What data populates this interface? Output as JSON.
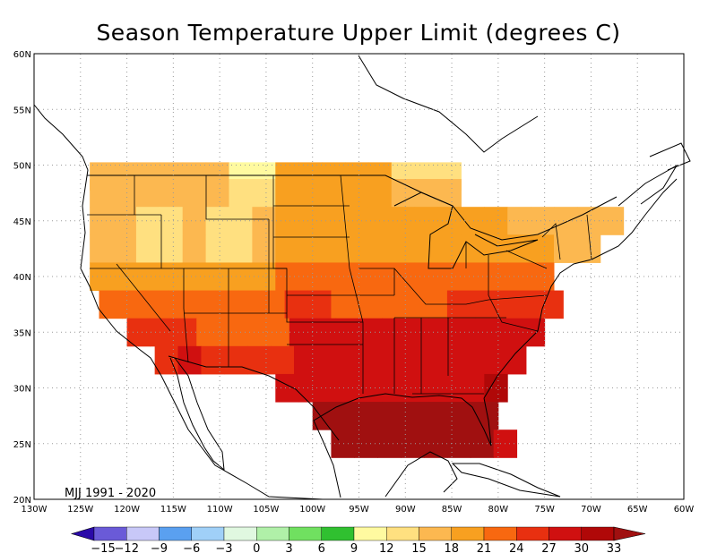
{
  "title": "Season Temperature Upper Limit (degrees C)",
  "period_label": "MJJ 1991 - 2020",
  "axes": {
    "lon_labels": [
      "130W",
      "125W",
      "120W",
      "115W",
      "110W",
      "105W",
      "100W",
      "95W",
      "90W",
      "85W",
      "80W",
      "75W",
      "70W",
      "65W",
      "60W"
    ],
    "lat_labels": [
      "20N",
      "25N",
      "30N",
      "35N",
      "40N",
      "45N",
      "50N",
      "55N",
      "60N"
    ],
    "lon_range": [
      -130,
      -60
    ],
    "lat_range": [
      20,
      60
    ],
    "grid": "dotted"
  },
  "colorbar": {
    "labels": [
      "-15",
      "-12",
      "-9",
      "-6",
      "-3",
      "0",
      "3",
      "6",
      "9",
      "12",
      "15",
      "18",
      "21",
      "24",
      "27",
      "30",
      "33"
    ],
    "below_color": "#2a0aa8",
    "above_color": "#a01010",
    "colors": [
      "#6a5ad8",
      "#c8c8f8",
      "#5aa0f0",
      "#a0d0f8",
      "#e0f8e0",
      "#b0f0a8",
      "#70e060",
      "#30c030",
      "#fffaa0",
      "#ffe080",
      "#fcb850",
      "#f8a020",
      "#f86810",
      "#e83010",
      "#d01010",
      "#b00808"
    ]
  },
  "chart_data": {
    "type": "heatmap",
    "title": "Season Temperature Upper Limit (degrees C)",
    "annotation": "MJJ 1991 - 2020",
    "x_axis": "longitude",
    "y_axis": "latitude",
    "lon_range": [
      -130,
      -60
    ],
    "lat_range": [
      20,
      60
    ],
    "cell_size_degrees": 2.5,
    "value_bins": [
      -15,
      -12,
      -9,
      -6,
      -3,
      0,
      3,
      6,
      9,
      12,
      15,
      18,
      21,
      24,
      27,
      30,
      33
    ],
    "regions_approx": [
      {
        "lat_from": 45,
        "lat_to": 49,
        "lon_from": -125,
        "lon_to": -111,
        "value": 16
      },
      {
        "lat_from": 42,
        "lat_to": 46,
        "lon_from": -121,
        "lon_to": -116,
        "value": 14
      },
      {
        "lat_from": 42,
        "lat_to": 45,
        "lon_from": -112,
        "lon_to": -107,
        "value": 14
      },
      {
        "lat_from": 44,
        "lat_to": 49,
        "lon_from": -104,
        "lon_to": -94,
        "value": 19
      },
      {
        "lat_from": 43,
        "lat_to": 47,
        "lon_from": -90,
        "lon_to": -82,
        "value": 18
      },
      {
        "lat_from": 42,
        "lat_to": 46,
        "lon_from": -75,
        "lon_to": -67,
        "value": 16
      },
      {
        "lat_from": 37,
        "lat_to": 42,
        "lon_from": -100,
        "lon_to": -88,
        "value": 22
      },
      {
        "lat_from": 33,
        "lat_to": 37,
        "lon_from": -114,
        "lon_to": -105,
        "value": 21
      },
      {
        "lat_from": 30,
        "lat_to": 35,
        "lon_from": -104,
        "lon_to": -82,
        "value": 27
      },
      {
        "lat_from": 32,
        "lat_to": 34,
        "lon_from": -116,
        "lon_to": -113,
        "value": 29
      },
      {
        "lat_from": 29,
        "lat_to": 33,
        "lon_from": -100,
        "lon_to": -93,
        "value": 29
      },
      {
        "lat_from": 25,
        "lat_to": 29,
        "lon_from": -82,
        "lon_to": -80,
        "value": 27
      }
    ]
  }
}
